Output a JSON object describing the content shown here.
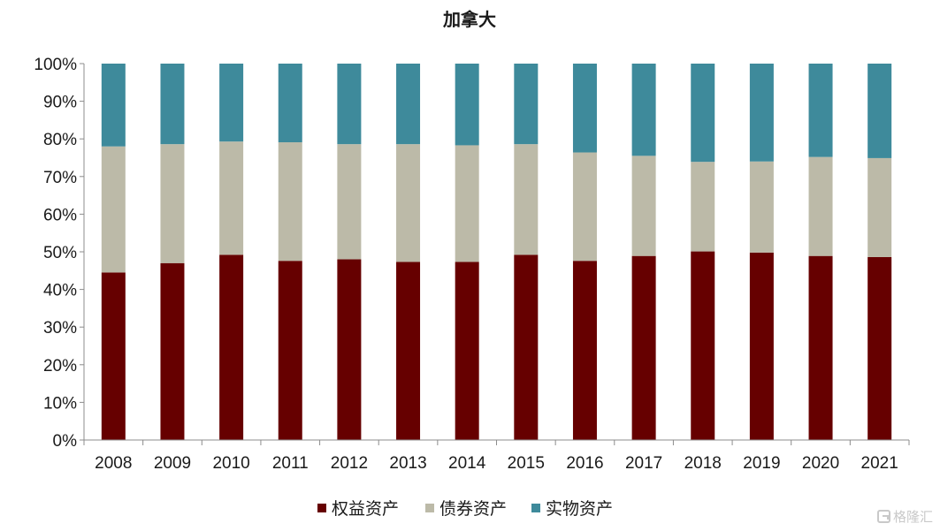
{
  "chart_data": {
    "type": "bar",
    "stacked": true,
    "title": "加拿大",
    "categories": [
      "2008",
      "2009",
      "2010",
      "2011",
      "2012",
      "2013",
      "2014",
      "2015",
      "2016",
      "2017",
      "2018",
      "2019",
      "2020",
      "2021"
    ],
    "series": [
      {
        "name": "权益资产",
        "color": "#660000",
        "values": [
          44.5,
          47,
          49.2,
          47.6,
          48,
          47.3,
          47.3,
          49.2,
          47.6,
          48.9,
          50.1,
          49.8,
          48.9,
          48.6
        ]
      },
      {
        "name": "债券资产",
        "color": "#bcbaa8",
        "values": [
          33.5,
          31.6,
          30.1,
          31.5,
          30.6,
          31.3,
          31,
          29.4,
          28.8,
          26.6,
          23.8,
          24.2,
          26.3,
          26.3
        ]
      },
      {
        "name": "实物资产",
        "color": "#3e8a9b",
        "values": [
          22,
          21.4,
          20.7,
          20.9,
          21.4,
          21.4,
          21.7,
          21.4,
          23.6,
          24.5,
          26.1,
          26,
          24.8,
          25.1
        ]
      }
    ],
    "ylim": [
      0,
      100
    ],
    "yticks": [
      "0%",
      "10%",
      "20%",
      "30%",
      "40%",
      "50%",
      "60%",
      "70%",
      "80%",
      "90%",
      "100%"
    ],
    "grid": false,
    "legend": "bottom"
  },
  "watermark": "格隆汇"
}
